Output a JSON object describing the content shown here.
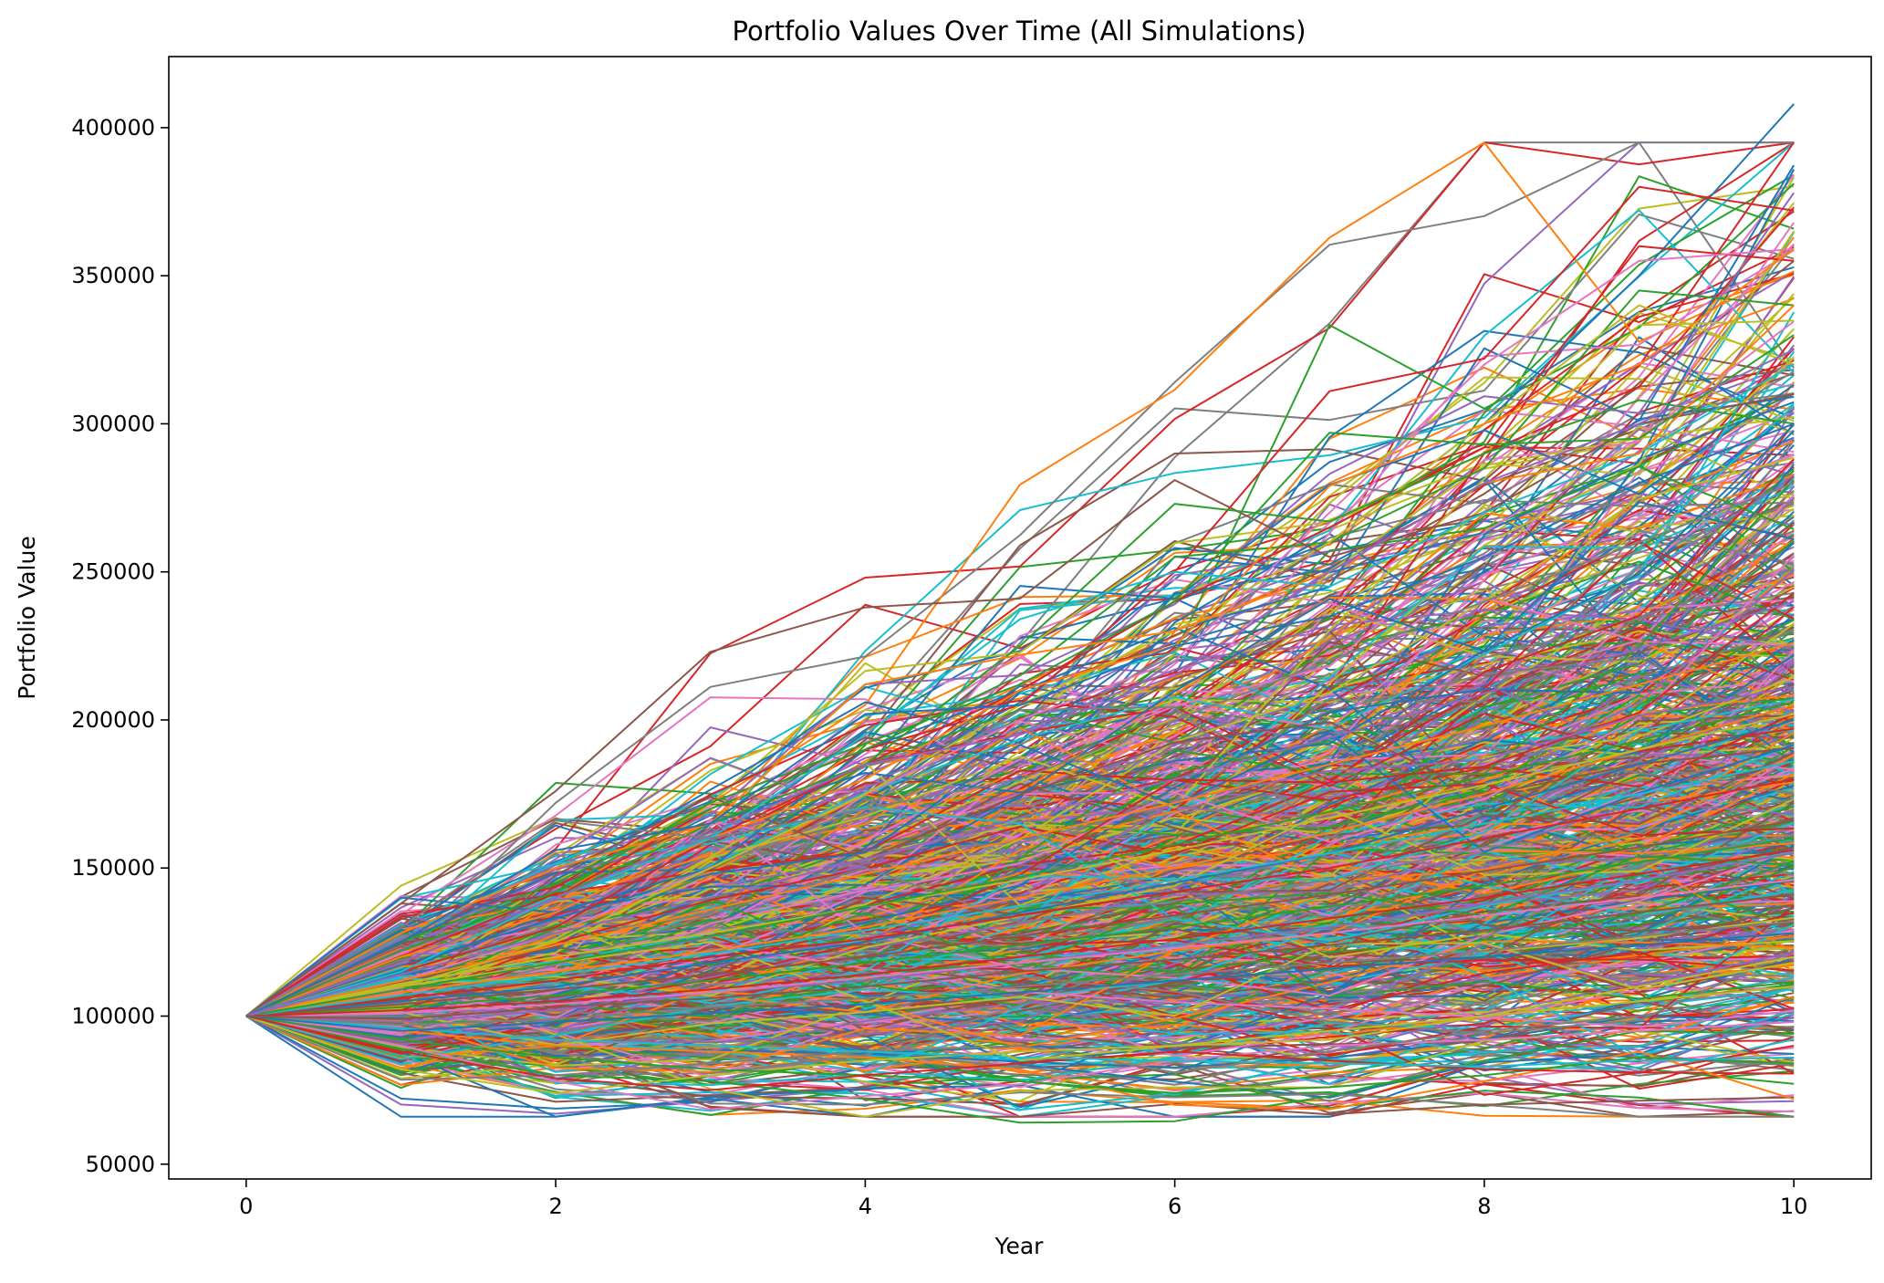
{
  "chart_data": {
    "type": "line",
    "title": "Portfolio Values Over Time (All Simulations)",
    "xlabel": "Year",
    "ylabel": "Portfolio Value",
    "xlim": [
      -0.5,
      10.5
    ],
    "ylim": [
      45000,
      424000
    ],
    "x_ticks": [
      "0",
      "2",
      "4",
      "6",
      "8",
      "10"
    ],
    "y_ticks": [
      "50000",
      "100000",
      "150000",
      "200000",
      "250000",
      "300000",
      "350000",
      "400000"
    ],
    "grid": false,
    "legend": "none",
    "x": [
      0,
      1,
      2,
      3,
      4,
      5,
      6,
      7,
      8,
      9,
      10
    ],
    "palette": [
      "#1f77b4",
      "#ff7f0e",
      "#2ca02c",
      "#d62728",
      "#9467bd",
      "#8c564b",
      "#e377c2",
      "#7f7f7f",
      "#bcbd22",
      "#17becf"
    ],
    "series_count_estimate": 1000,
    "series": [
      {
        "color": "#1f77b4",
        "values": [
          100000,
          140000,
          135000,
          150000,
          190000,
          210000,
          240000,
          260000,
          300000,
          350000,
          408000
        ]
      },
      {
        "color": "#d62728",
        "values": [
          100000,
          118000,
          140000,
          170000,
          190000,
          205000,
          250000,
          311000,
          322000,
          380000,
          372000
        ]
      },
      {
        "color": "#d62728",
        "values": [
          100000,
          115000,
          130000,
          160000,
          185000,
          210000,
          240000,
          265000,
          292000,
          360000,
          355000
        ]
      },
      {
        "color": "#e377c2",
        "values": [
          100000,
          112000,
          128000,
          150000,
          175000,
          200000,
          220000,
          270000,
          320000,
          355000,
          359000
        ]
      },
      {
        "color": "#2ca02c",
        "values": [
          100000,
          125000,
          145000,
          170000,
          190000,
          215000,
          255000,
          260000,
          285000,
          345000,
          340000
        ]
      },
      {
        "color": "#bcbd22",
        "values": [
          100000,
          110000,
          125000,
          150000,
          175000,
          205000,
          230000,
          260000,
          300000,
          340000,
          320000
        ]
      },
      {
        "color": "#ff7f0e",
        "values": [
          100000,
          120000,
          135000,
          160000,
          180000,
          210000,
          225000,
          279000,
          300000,
          320000,
          359000
        ]
      },
      {
        "color": "#8c564b",
        "values": [
          100000,
          138000,
          176000,
          223000,
          238000,
          241000,
          281000,
          255000,
          270000,
          300000,
          310000
        ]
      },
      {
        "color": "#2ca02c",
        "values": [
          100000,
          118000,
          140000,
          165000,
          185000,
          225000,
          273000,
          267000,
          290000,
          308000,
          300000
        ]
      },
      {
        "color": "#2ca02c",
        "values": [
          100000,
          122000,
          142000,
          172000,
          192000,
          212000,
          240000,
          297000,
          293000,
          295000,
          330000
        ]
      },
      {
        "color": "#17becf",
        "values": [
          100000,
          115000,
          140000,
          160000,
          195000,
          234000,
          250000,
          245000,
          270000,
          290000,
          320000
        ]
      },
      {
        "color": "#ff7f0e",
        "values": [
          100000,
          128000,
          150000,
          165000,
          212000,
          222000,
          230000,
          250000,
          280000,
          290000,
          340000
        ]
      },
      {
        "color": "#7f7f7f",
        "values": [
          100000,
          130000,
          166000,
          160000,
          170000,
          180000,
          200000,
          220000,
          240000,
          260000,
          280000
        ]
      },
      {
        "color": "#1f77b4",
        "values": [
          100000,
          125000,
          156000,
          165000,
          202000,
          205000,
          225000,
          235000,
          255000,
          280000,
          300000
        ]
      },
      {
        "color": "#9467bd",
        "values": [
          100000,
          118000,
          140000,
          162000,
          185000,
          195000,
          215000,
          250000,
          280000,
          300000,
          325000
        ]
      },
      {
        "color": "#2ca02c",
        "values": [
          100000,
          89000,
          80000,
          78000,
          72000,
          64000,
          64500,
          73000,
          85000,
          95000,
          94000
        ]
      },
      {
        "color": "#ff7f0e",
        "values": [
          100000,
          95000,
          90000,
          88000,
          86000,
          82000,
          70000,
          68500,
          78000,
          88000,
          72000
        ]
      },
      {
        "color": "#e377c2",
        "values": [
          100000,
          90000,
          78000,
          68500,
          73000,
          77000,
          85000,
          90000,
          92000,
          95000,
          98000
        ]
      },
      {
        "color": "#7f7f7f",
        "values": [
          100000,
          78500,
          80000,
          84000,
          88000,
          90000,
          81000,
          88000,
          95000,
          100000,
          110000
        ]
      },
      {
        "color": "#bcbd22",
        "values": [
          100000,
          82000,
          74000,
          80000,
          85000,
          88000,
          90000,
          92000,
          100000,
          110000,
          120000
        ]
      },
      {
        "color": "#2ca02c",
        "values": [
          100000,
          92000,
          86000,
          82000,
          80000,
          78000,
          74000,
          76000,
          80000,
          86000,
          84000
        ]
      },
      {
        "color": "#d62728",
        "values": [
          100000,
          88000,
          79000,
          75000,
          80000,
          84000,
          88000,
          85000,
          82000,
          81000,
          90000
        ]
      },
      {
        "color": "#17becf",
        "values": [
          100000,
          96000,
          92000,
          90000,
          88000,
          86000,
          85000,
          84000,
          83000,
          85000,
          86000
        ]
      },
      {
        "color": "#bcbd22",
        "values": [
          100000,
          110000,
          118000,
          125000,
          105000,
          85000,
          90000,
          95000,
          100000,
          105000,
          110000
        ]
      },
      {
        "color": "#1f77b4",
        "values": [
          100000,
          105000,
          110000,
          118000,
          125000,
          135000,
          145000,
          155000,
          170000,
          185000,
          200000
        ]
      },
      {
        "color": "#ff7f0e",
        "values": [
          100000,
          108000,
          115000,
          122000,
          130000,
          140000,
          150000,
          162000,
          175000,
          190000,
          205000
        ]
      },
      {
        "color": "#2ca02c",
        "values": [
          100000,
          103000,
          107000,
          112000,
          118000,
          124000,
          130000,
          137000,
          144000,
          152000,
          160000
        ]
      },
      {
        "color": "#d62728",
        "values": [
          100000,
          106000,
          112000,
          120000,
          126000,
          134000,
          142000,
          150000,
          160000,
          170000,
          180000
        ]
      },
      {
        "color": "#9467bd",
        "values": [
          100000,
          98000,
          102000,
          108000,
          112000,
          118000,
          124000,
          130000,
          138000,
          146000,
          155000
        ]
      },
      {
        "color": "#8c564b",
        "values": [
          100000,
          104000,
          109000,
          114000,
          120000,
          127000,
          134000,
          141000,
          149000,
          157000,
          166000
        ]
      },
      {
        "color": "#e377c2",
        "values": [
          100000,
          101000,
          104000,
          108000,
          113000,
          118000,
          123000,
          128000,
          134000,
          140000,
          146000
        ]
      },
      {
        "color": "#7f7f7f",
        "values": [
          100000,
          97000,
          99000,
          103000,
          106000,
          110000,
          114000,
          118000,
          122000,
          127000,
          132000
        ]
      },
      {
        "color": "#bcbd22",
        "values": [
          100000,
          111000,
          120000,
          128000,
          137000,
          146000,
          156000,
          167000,
          178000,
          190000,
          202000
        ]
      },
      {
        "color": "#17becf",
        "values": [
          100000,
          107000,
          114000,
          121000,
          129000,
          137000,
          146000,
          155000,
          165000,
          175000,
          186000
        ]
      },
      {
        "color": "#1f77b4",
        "values": [
          100000,
          95000,
          98000,
          101000,
          104000,
          108000,
          112000,
          116000,
          120000,
          124000,
          128000
        ]
      },
      {
        "color": "#ff7f0e",
        "values": [
          100000,
          112000,
          124000,
          136000,
          148000,
          160000,
          172000,
          185000,
          198000,
          212000,
          226000
        ]
      },
      {
        "color": "#2ca02c",
        "values": [
          100000,
          109000,
          118000,
          127000,
          137000,
          147000,
          158000,
          169000,
          181000,
          193000,
          206000
        ]
      },
      {
        "color": "#d62728",
        "values": [
          100000,
          102000,
          105000,
          109000,
          114000,
          120000,
          126000,
          133000,
          140000,
          148000,
          156000
        ]
      },
      {
        "color": "#9467bd",
        "values": [
          100000,
          114000,
          128000,
          140000,
          153000,
          167000,
          180000,
          194000,
          209000,
          224000,
          240000
        ]
      },
      {
        "color": "#8c564b",
        "values": [
          100000,
          99000,
          103000,
          106000,
          110000,
          115000,
          119000,
          124000,
          129000,
          135000,
          141000
        ]
      }
    ]
  }
}
